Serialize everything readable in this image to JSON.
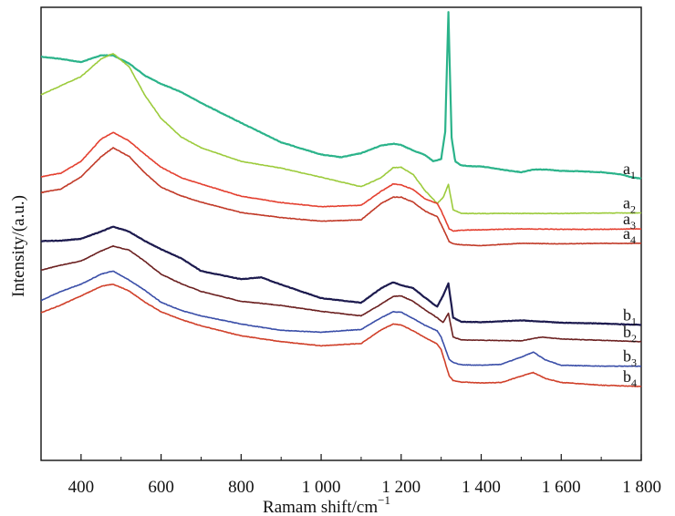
{
  "chart_data": {
    "type": "line",
    "title": "",
    "xlabel": "Ramam shift/cm",
    "xlabel_superscript": "−1",
    "ylabel": "Intensity/(a.u.)",
    "xlim": [
      300,
      1800
    ],
    "ylim": [
      0,
      100
    ],
    "xticks": [
      400,
      600,
      800,
      1000,
      1200,
      1400,
      1600,
      1800
    ],
    "xtick_labels": [
      "400",
      "600",
      "800",
      "1 000",
      "1 200",
      "1 400",
      "1 600",
      "1 800"
    ],
    "grid": false,
    "legend": "inline labels at right end of each curve",
    "series": [
      {
        "name": "a1",
        "label_base": "a",
        "label_sub": "1",
        "color": "#2bb38a",
        "x": [
          300,
          350,
          400,
          450,
          480,
          520,
          560,
          600,
          650,
          700,
          800,
          900,
          1000,
          1050,
          1100,
          1150,
          1180,
          1200,
          1230,
          1260,
          1280,
          1300,
          1310,
          1318,
          1326,
          1335,
          1350,
          1380,
          1400,
          1450,
          1500,
          1530,
          1560,
          1600,
          1650,
          1700,
          1750,
          1780,
          1800
        ],
        "y": [
          89.1,
          88.6,
          87.9,
          89.4,
          89.4,
          87.6,
          84.9,
          83.1,
          81.3,
          78.9,
          74.5,
          70.2,
          67.5,
          66.9,
          67.8,
          69.5,
          69.9,
          69.6,
          68.4,
          67.4,
          66.0,
          66.5,
          72.5,
          99.0,
          71.3,
          66.0,
          65.1,
          64.9,
          64.9,
          64.2,
          63.6,
          64.2,
          64.2,
          63.9,
          63.8,
          63.6,
          63.1,
          62.4,
          62.2
        ]
      },
      {
        "name": "a2",
        "label_base": "a",
        "label_sub": "2",
        "color": "#9ccb3c",
        "x": [
          300,
          350,
          400,
          450,
          480,
          520,
          560,
          600,
          650,
          700,
          800,
          900,
          1000,
          1100,
          1150,
          1180,
          1200,
          1230,
          1260,
          1290,
          1305,
          1318,
          1330,
          1350,
          1400,
          1500,
          1600,
          1700,
          1800
        ],
        "y": [
          80.7,
          82.7,
          84.7,
          88.6,
          89.8,
          86.9,
          80.5,
          75.5,
          71.4,
          69.0,
          66.0,
          64.5,
          62.5,
          60.4,
          62.4,
          64.6,
          64.7,
          63.1,
          59.5,
          56.7,
          58.0,
          60.9,
          55.3,
          54.5,
          54.5,
          54.5,
          54.5,
          54.6,
          54.6
        ]
      },
      {
        "name": "a3",
        "label_base": "a",
        "label_sub": "3",
        "color": "#e44030",
        "x": [
          300,
          350,
          400,
          450,
          480,
          520,
          560,
          600,
          650,
          700,
          800,
          900,
          1000,
          1100,
          1150,
          1180,
          1200,
          1230,
          1260,
          1290,
          1300,
          1320,
          1330,
          1350,
          1400,
          1500,
          1600,
          1700,
          1800
        ],
        "y": [
          62.6,
          63.4,
          66.0,
          70.9,
          72.4,
          70.5,
          67.5,
          64.7,
          62.4,
          61.0,
          58.3,
          56.9,
          56.0,
          56.3,
          59.4,
          61.0,
          60.8,
          59.8,
          57.7,
          56.7,
          55.1,
          51.1,
          50.6,
          50.8,
          50.9,
          51.1,
          51.0,
          51.0,
          51.1
        ]
      },
      {
        "name": "a4",
        "label_base": "a",
        "label_sub": "4",
        "color": "#c13a28",
        "x": [
          300,
          350,
          400,
          450,
          480,
          520,
          560,
          600,
          650,
          700,
          800,
          900,
          1000,
          1100,
          1150,
          1180,
          1200,
          1230,
          1260,
          1290,
          1300,
          1320,
          1330,
          1350,
          1400,
          1500,
          1600,
          1700,
          1800
        ],
        "y": [
          59.1,
          59.9,
          62.6,
          67.0,
          69.0,
          67.1,
          63.4,
          60.3,
          58.4,
          57.0,
          54.7,
          53.6,
          52.8,
          53.1,
          56.7,
          58.1,
          58.1,
          57.0,
          55.0,
          53.8,
          52.1,
          48.3,
          47.8,
          47.6,
          47.4,
          47.9,
          47.8,
          47.9,
          47.9
        ]
      },
      {
        "name": "b1",
        "label_base": "b",
        "label_sub": "1",
        "color": "#1c1a4e",
        "x": [
          300,
          350,
          400,
          450,
          480,
          520,
          560,
          600,
          650,
          700,
          800,
          850,
          900,
          1000,
          1100,
          1150,
          1180,
          1200,
          1230,
          1260,
          1290,
          1305,
          1318,
          1330,
          1350,
          1400,
          1500,
          1600,
          1700,
          1800
        ],
        "y": [
          48.4,
          48.5,
          48.9,
          50.5,
          51.6,
          50.5,
          48.4,
          46.6,
          44.6,
          41.8,
          40.0,
          40.4,
          38.8,
          35.8,
          34.8,
          38.0,
          39.3,
          38.7,
          38.0,
          35.9,
          33.9,
          36.4,
          39.1,
          31.5,
          30.6,
          30.5,
          30.9,
          30.4,
          30.2,
          29.9
        ]
      },
      {
        "name": "b2",
        "label_base": "b",
        "label_sub": "2",
        "color": "#6b2020",
        "x": [
          300,
          350,
          400,
          450,
          480,
          520,
          560,
          600,
          650,
          700,
          800,
          900,
          1000,
          1100,
          1150,
          1180,
          1200,
          1230,
          1260,
          1290,
          1305,
          1318,
          1330,
          1350,
          1400,
          1500,
          1550,
          1600,
          1700,
          1800
        ],
        "y": [
          42.0,
          43.1,
          44.0,
          46.2,
          47.3,
          46.4,
          43.9,
          41.1,
          39.0,
          37.3,
          35.1,
          34.2,
          32.9,
          31.9,
          34.5,
          36.2,
          36.3,
          35.1,
          33.2,
          31.5,
          30.4,
          32.5,
          27.2,
          26.6,
          26.5,
          26.4,
          27.2,
          26.8,
          26.5,
          26.2
        ]
      },
      {
        "name": "b3",
        "label_base": "b",
        "label_sub": "3",
        "color": "#3a4ea8",
        "x": [
          300,
          350,
          400,
          450,
          480,
          520,
          560,
          600,
          650,
          700,
          800,
          900,
          1000,
          1100,
          1150,
          1180,
          1200,
          1230,
          1260,
          1290,
          1300,
          1320,
          1330,
          1350,
          1400,
          1450,
          1500,
          1530,
          1560,
          1600,
          1700,
          1800
        ],
        "y": [
          35.3,
          37.3,
          38.9,
          41.1,
          41.8,
          39.8,
          37.5,
          34.9,
          33.1,
          31.9,
          30.1,
          28.7,
          28.3,
          28.9,
          31.5,
          32.8,
          32.7,
          31.3,
          29.8,
          28.6,
          27.2,
          22.3,
          21.6,
          21.1,
          21.0,
          21.2,
          22.8,
          23.9,
          22.2,
          21.0,
          20.8,
          20.8
        ]
      },
      {
        "name": "b4",
        "label_base": "b",
        "label_sub": "4",
        "color": "#d0402a",
        "x": [
          300,
          350,
          400,
          450,
          480,
          520,
          560,
          600,
          650,
          700,
          800,
          900,
          1000,
          1100,
          1150,
          1180,
          1200,
          1230,
          1260,
          1290,
          1300,
          1320,
          1330,
          1350,
          1400,
          1450,
          1500,
          1530,
          1560,
          1600,
          1700,
          1800
        ],
        "y": [
          32.6,
          34.3,
          36.3,
          38.4,
          38.9,
          37.4,
          34.9,
          32.8,
          31.1,
          29.7,
          27.5,
          26.2,
          25.3,
          25.8,
          28.8,
          30.1,
          29.9,
          28.6,
          27.1,
          25.7,
          24.4,
          18.7,
          17.6,
          17.3,
          17.1,
          17.2,
          18.6,
          19.4,
          18.1,
          17.2,
          16.6,
          16.3
        ]
      }
    ]
  }
}
